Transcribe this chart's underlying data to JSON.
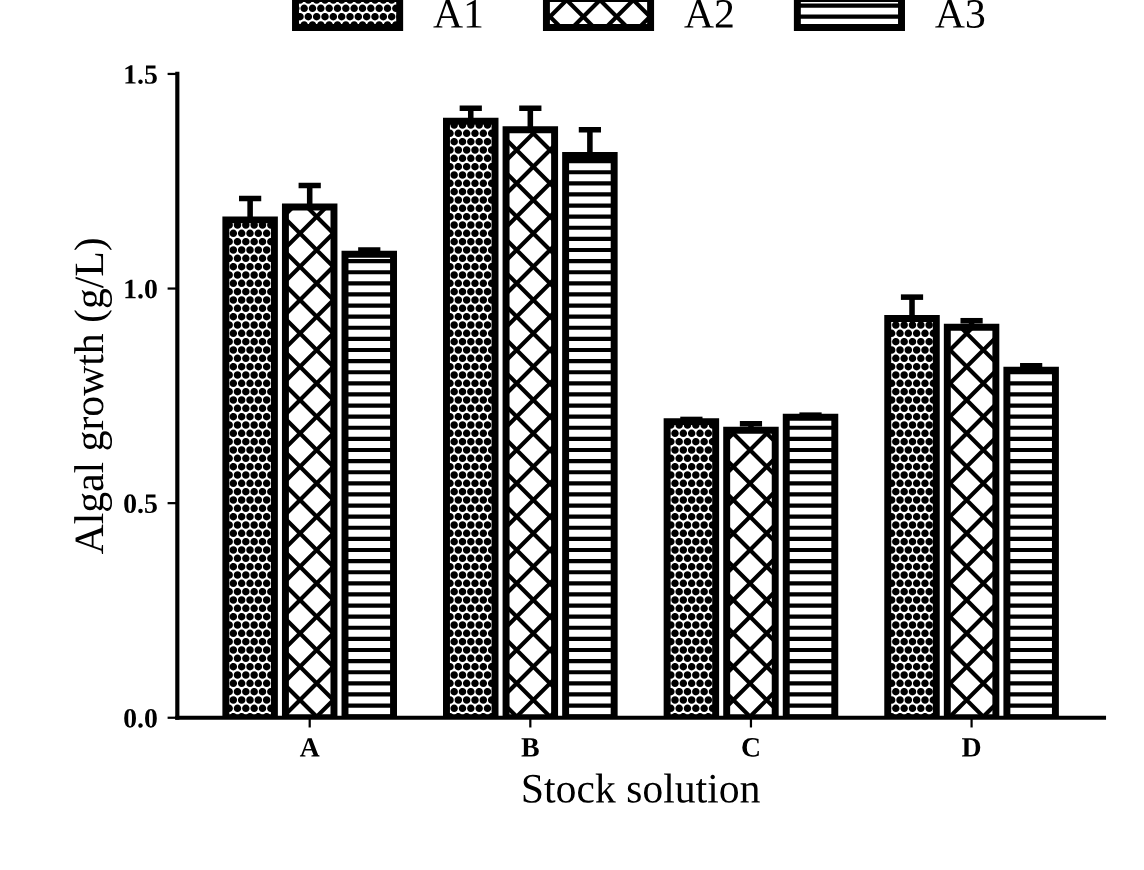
{
  "chart_data": {
    "type": "bar",
    "xlabel": "Stock solution",
    "ylabel": "Algal growth (g/L)",
    "categories": [
      "A",
      "B",
      "C",
      "D"
    ],
    "series": [
      {
        "name": "A1",
        "color": "#000000",
        "values": [
          1.16,
          1.39,
          0.69,
          0.93
        ],
        "errors": [
          0.05,
          0.03,
          0.005,
          0.05
        ]
      },
      {
        "name": "A2",
        "color": "#000000",
        "values": [
          1.19,
          1.37,
          0.67,
          0.91
        ],
        "errors": [
          0.05,
          0.05,
          0.015,
          0.015
        ]
      },
      {
        "name": "A3",
        "color": "#000000",
        "values": [
          1.08,
          1.31,
          0.7,
          0.81
        ],
        "errors": [
          0.01,
          0.06,
          0.005,
          0.01
        ]
      }
    ],
    "ylim": [
      0,
      1.5
    ],
    "yticks": [
      {
        "value": 0,
        "label": "0.0"
      },
      0.5,
      {
        "value": 1,
        "label": "1.0"
      },
      1.5
    ],
    "grid": false,
    "legend": "top"
  }
}
